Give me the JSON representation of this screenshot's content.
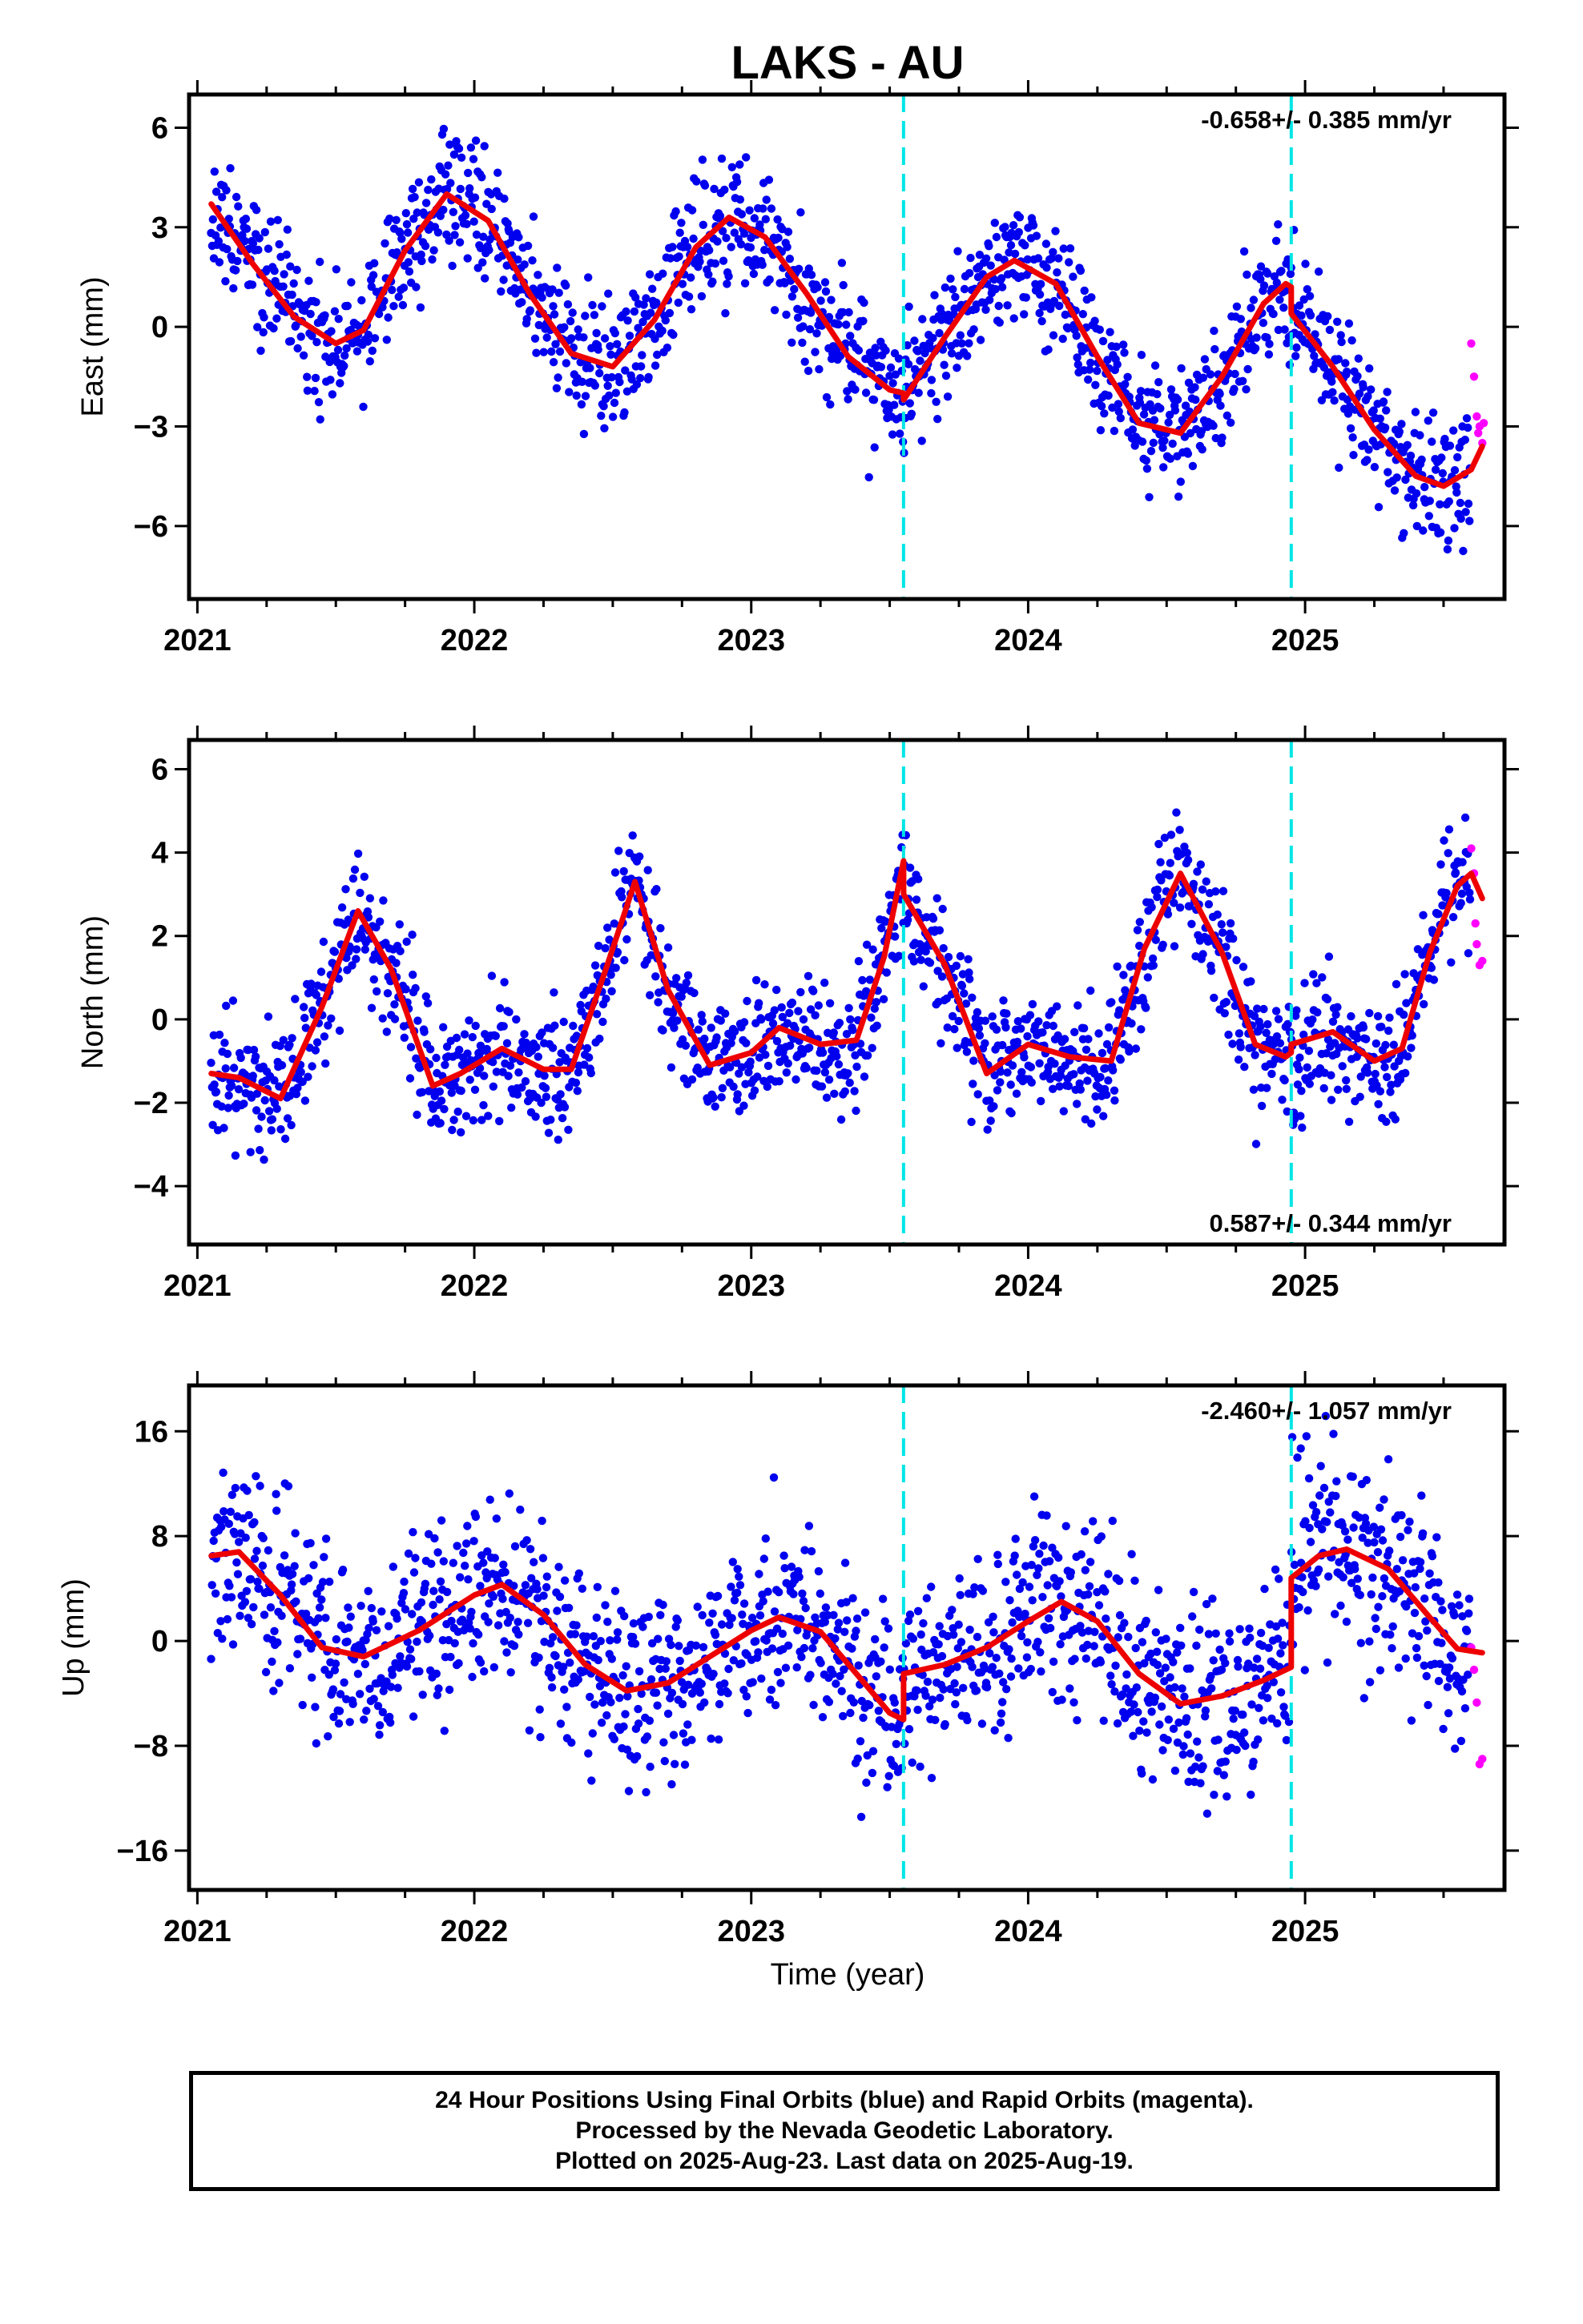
{
  "title": "LAKS - AU",
  "xlabel": "Time (year)",
  "caption": [
    "24 Hour Positions Using Final Orbits (blue) and Rapid Orbits (magenta).",
    "Processed by the Nevada Geodetic Laboratory.",
    "Plotted on 2025-Aug-23. Last data on 2025-Aug-19."
  ],
  "colors": {
    "final_orbits": "#0000ee",
    "rapid_orbits": "#ff00ff",
    "model_fit": "#ee0000",
    "events": "#00e5e5"
  },
  "chart_data": [
    {
      "type": "scatter",
      "name": "east",
      "ylabel": "East (mm)",
      "xlim": [
        2020.97,
        2025.72
      ],
      "ylim": [
        -8.2,
        7.0
      ],
      "xticks": [
        2021,
        2022,
        2023,
        2024,
        2025
      ],
      "yticks": [
        6,
        3,
        0,
        -3,
        -6
      ],
      "ytick_labels": [
        "6",
        "3",
        "0",
        "−3",
        "−6"
      ],
      "rate_label": "-0.658+/- 0.385 mm/yr",
      "rate_position": "top-right",
      "event_lines": [
        2023.55,
        2024.95
      ],
      "fit": {
        "x": [
          2021.05,
          2021.2,
          2021.35,
          2021.5,
          2021.6,
          2021.75,
          2021.9,
          2022.05,
          2022.2,
          2022.35,
          2022.5,
          2022.65,
          2022.8,
          2022.92,
          2023.05,
          2023.2,
          2023.35,
          2023.5,
          2023.55,
          2023.55,
          2023.7,
          2023.85,
          2023.95,
          2024.1,
          2024.25,
          2024.4,
          2024.55,
          2024.7,
          2024.85,
          2024.93,
          2024.95,
          2024.95,
          2025.1,
          2025.25,
          2025.4,
          2025.5,
          2025.6,
          2025.64
        ],
        "y": [
          3.7,
          1.9,
          0.3,
          -0.5,
          -0.1,
          2.3,
          4.0,
          3.2,
          1.0,
          -0.8,
          -1.2,
          0.2,
          2.4,
          3.3,
          2.7,
          1.0,
          -0.9,
          -1.9,
          -2.0,
          -2.2,
          -0.3,
          1.5,
          2.0,
          1.3,
          -0.9,
          -2.9,
          -3.2,
          -1.5,
          0.7,
          1.3,
          1.2,
          0.4,
          -1.2,
          -3.1,
          -4.5,
          -4.8,
          -4.3,
          -3.6
        ]
      },
      "rapid_points": {
        "x": [
          2025.6,
          2025.61,
          2025.62,
          2025.625,
          2025.63,
          2025.64,
          2025.645
        ],
        "y": [
          -0.5,
          -1.5,
          -2.7,
          -3.2,
          -3.0,
          -3.5,
          -2.9
        ]
      },
      "scatter": {
        "sd": 0.95,
        "n": 1500,
        "seed": 11
      }
    },
    {
      "type": "scatter",
      "name": "north",
      "ylabel": "North (mm)",
      "xlim": [
        2020.97,
        2025.72
      ],
      "ylim": [
        -5.4,
        6.7
      ],
      "xticks": [
        2021,
        2022,
        2023,
        2024,
        2025
      ],
      "yticks": [
        6,
        4,
        2,
        0,
        -2,
        -4
      ],
      "ytick_labels": [
        "6",
        "4",
        "2",
        "0",
        "−2",
        "−4"
      ],
      "rate_label": "0.587+/- 0.344 mm/yr",
      "rate_position": "bottom-right",
      "event_lines": [
        2023.55,
        2024.95
      ],
      "fit": {
        "x": [
          2021.05,
          2021.15,
          2021.3,
          2021.45,
          2021.58,
          2021.7,
          2021.85,
          2021.95,
          2022.1,
          2022.25,
          2022.35,
          2022.48,
          2022.58,
          2022.7,
          2022.85,
          2023.0,
          2023.1,
          2023.25,
          2023.38,
          2023.48,
          2023.55,
          2023.55,
          2023.7,
          2023.85,
          2024.0,
          2024.15,
          2024.3,
          2024.42,
          2024.55,
          2024.7,
          2024.82,
          2024.93,
          2024.95,
          2024.95,
          2025.1,
          2025.25,
          2025.35,
          2025.45,
          2025.55,
          2025.6,
          2025.64
        ],
        "y": [
          -1.3,
          -1.4,
          -1.9,
          0.3,
          2.6,
          1.2,
          -1.6,
          -1.3,
          -0.7,
          -1.2,
          -1.2,
          1.3,
          3.3,
          0.7,
          -1.1,
          -0.8,
          -0.2,
          -0.6,
          -0.5,
          1.5,
          3.8,
          3.0,
          1.3,
          -1.3,
          -0.6,
          -0.9,
          -1.0,
          1.7,
          3.5,
          1.6,
          -0.6,
          -0.9,
          -0.8,
          -0.6,
          -0.3,
          -1.0,
          -0.7,
          1.6,
          3.2,
          3.5,
          2.9
        ]
      },
      "rapid_points": {
        "x": [
          2025.6,
          2025.61,
          2025.615,
          2025.62,
          2025.63,
          2025.64
        ],
        "y": [
          4.1,
          3.5,
          2.3,
          1.8,
          1.3,
          1.4
        ]
      },
      "scatter": {
        "sd": 0.75,
        "n": 1500,
        "seed": 23
      }
    },
    {
      "type": "scatter",
      "name": "up",
      "ylabel": "Up (mm)",
      "xlim": [
        2020.97,
        2025.72
      ],
      "ylim": [
        -19.0,
        19.5
      ],
      "xticks": [
        2021,
        2022,
        2023,
        2024,
        2025
      ],
      "yticks": [
        16,
        8,
        0,
        -8,
        -16
      ],
      "ytick_labels": [
        "16",
        "8",
        "0",
        "−8",
        "−16"
      ],
      "rate_label": "-2.460+/- 1.057 mm/yr",
      "rate_position": "top-right",
      "event_lines": [
        2023.55,
        2024.95
      ],
      "fit": {
        "x": [
          2021.05,
          2021.15,
          2021.3,
          2021.45,
          2021.6,
          2021.8,
          2022.0,
          2022.1,
          2022.25,
          2022.4,
          2022.55,
          2022.7,
          2022.85,
          2023.0,
          2023.1,
          2023.25,
          2023.4,
          2023.5,
          2023.55,
          2023.55,
          2023.7,
          2023.85,
          2024.0,
          2024.12,
          2024.25,
          2024.4,
          2024.55,
          2024.7,
          2024.85,
          2024.95,
          2024.95,
          2025.05,
          2025.15,
          2025.3,
          2025.45,
          2025.55,
          2025.64
        ],
        "y": [
          6.5,
          6.8,
          3.5,
          -0.5,
          -1.2,
          0.8,
          3.5,
          4.3,
          2.0,
          -1.8,
          -3.8,
          -3.2,
          -1.2,
          0.8,
          1.8,
          0.7,
          -3.0,
          -5.5,
          -6.0,
          -2.5,
          -1.8,
          -0.5,
          1.5,
          3.0,
          1.5,
          -2.5,
          -4.8,
          -4.2,
          -3.0,
          -2.0,
          4.8,
          6.5,
          7.0,
          5.5,
          1.8,
          -0.6,
          -0.9
        ]
      },
      "rapid_points": {
        "x": [
          2025.6,
          2025.61,
          2025.62,
          2025.63,
          2025.64
        ],
        "y": [
          -0.5,
          -2.2,
          -4.7,
          -9.4,
          -9.0
        ]
      },
      "scatter": {
        "sd": 3.6,
        "n": 1500,
        "seed": 37
      }
    }
  ]
}
